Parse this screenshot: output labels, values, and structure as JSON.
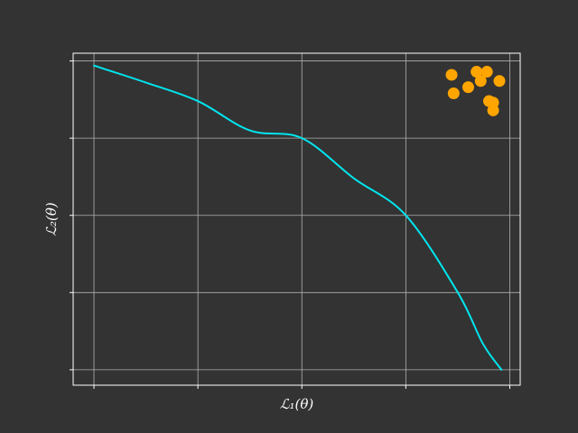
{
  "chart_data": {
    "type": "line",
    "title": "",
    "xlabel": "ℒ₁(θ)",
    "ylabel": "ℒ₂(θ)",
    "xlim": [
      -0.1,
      2.05
    ],
    "ylim": [
      -0.1,
      2.05
    ],
    "xticks": [
      0,
      0.5,
      1.0,
      1.5,
      2.0
    ],
    "yticks": [
      0,
      0.5,
      1.0,
      1.5,
      2.0
    ],
    "xticklabels": [],
    "yticklabels": [],
    "grid": true,
    "legend": "none",
    "series": [
      {
        "type": "line",
        "color": "#00e5ee",
        "x": [
          0.0,
          0.25,
          0.5,
          0.75,
          1.0,
          1.25,
          1.5,
          1.75,
          1.87,
          1.96
        ],
        "y": [
          1.97,
          1.86,
          1.74,
          1.55,
          1.5,
          1.24,
          1.0,
          0.5,
          0.17,
          0.0
        ]
      },
      {
        "type": "scatter",
        "color": "#ffa500",
        "x": [
          1.72,
          1.73,
          1.8,
          1.84,
          1.86,
          1.89,
          1.9,
          1.92,
          1.92,
          1.95
        ],
        "y": [
          1.91,
          1.79,
          1.83,
          1.93,
          1.87,
          1.93,
          1.74,
          1.73,
          1.68,
          1.87
        ]
      }
    ]
  }
}
